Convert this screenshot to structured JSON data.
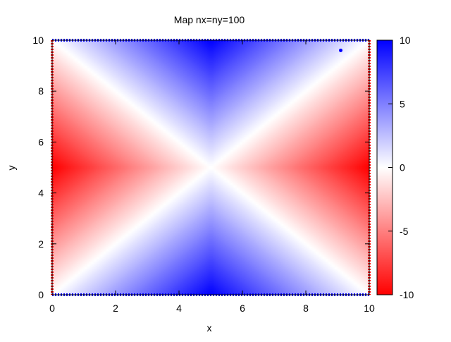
{
  "chart_data": {
    "type": "heatmap",
    "title": "Map nx=ny=100",
    "xlabel": "x",
    "ylabel": "y",
    "xlim": [
      0,
      10
    ],
    "ylim": [
      0,
      10
    ],
    "x_ticks": [
      0,
      2,
      4,
      6,
      8,
      10
    ],
    "y_ticks": [
      0,
      2,
      4,
      6,
      8,
      10
    ],
    "grid": {
      "nx": 100,
      "ny": 100,
      "x_range": [
        0,
        10
      ],
      "y_range": [
        0,
        10
      ]
    },
    "value_range": [
      -10,
      10
    ],
    "colorbar": {
      "ticks": [
        -10,
        -5,
        0,
        5,
        10
      ],
      "colors": {
        "min": "#ff0000",
        "mid": "#ffffff",
        "max": "#0000ff"
      },
      "placement": "right"
    },
    "field_description": "value = 20 * (|y - 5| - |x - 5|) / 10, saturating at ±10 near the edges",
    "field_samples": [
      {
        "x": 0,
        "y": 5,
        "value": -10
      },
      {
        "x": 10,
        "y": 5,
        "value": -10
      },
      {
        "x": 5,
        "y": 0,
        "value": 10
      },
      {
        "x": 5,
        "y": 10,
        "value": 10
      },
      {
        "x": 5,
        "y": 5,
        "value": 0
      },
      {
        "x": 0,
        "y": 0,
        "value": 0
      },
      {
        "x": 10,
        "y": 10,
        "value": 0
      },
      {
        "x": 2,
        "y": 5,
        "value": -6
      },
      {
        "x": 5,
        "y": 8,
        "value": 6
      }
    ],
    "outlier_point": {
      "x": 9.1,
      "y": 9.6,
      "value": 10
    }
  }
}
